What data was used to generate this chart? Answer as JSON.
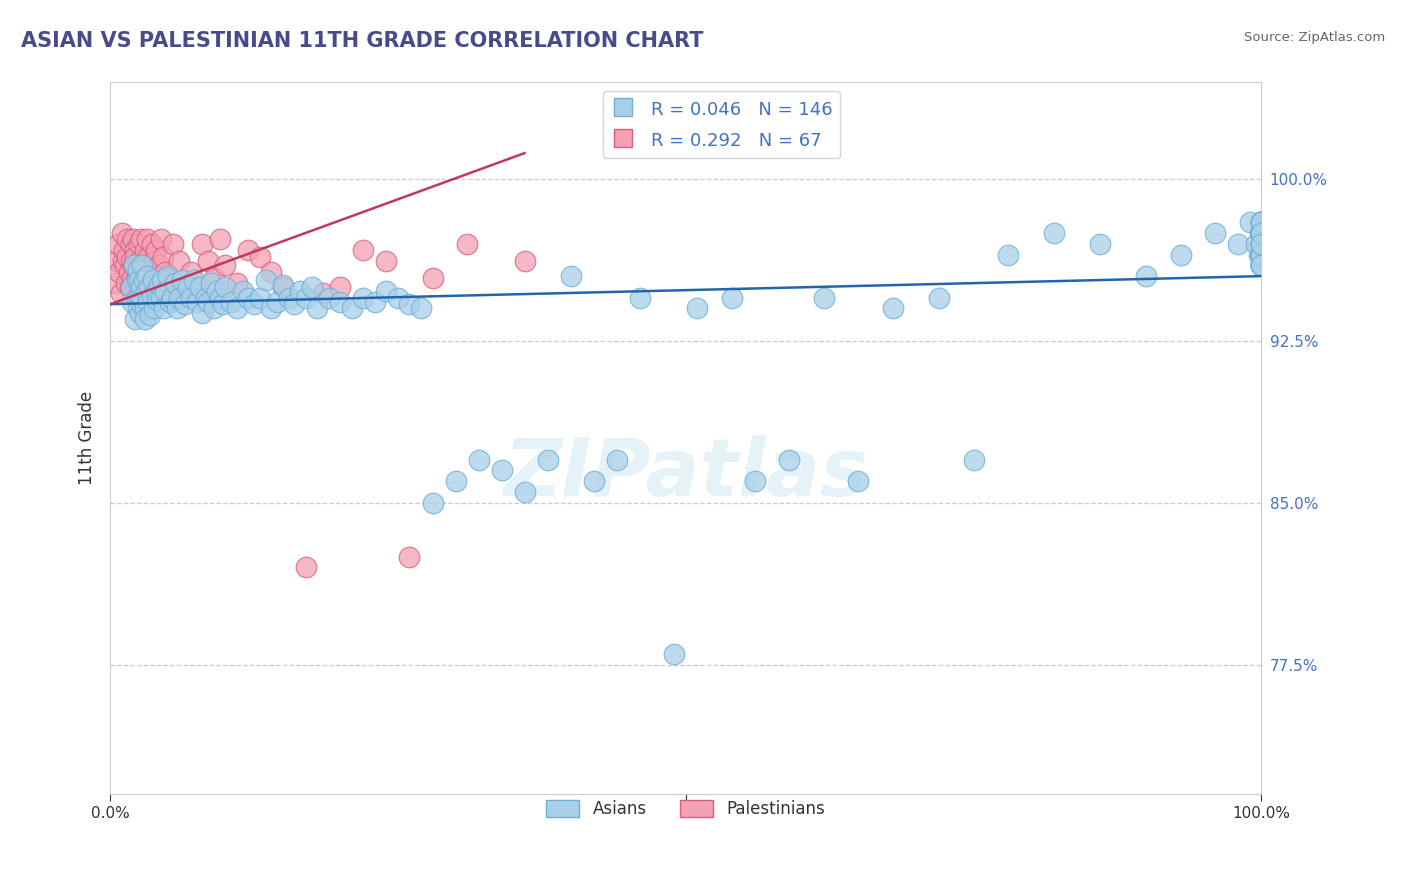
{
  "title": "ASIAN VS PALESTINIAN 11TH GRADE CORRELATION CHART",
  "source_text": "Source: ZipAtlas.com",
  "ylabel": "11th Grade",
  "ytick_labels": [
    "77.5%",
    "85.0%",
    "92.5%",
    "100.0%"
  ],
  "ytick_values": [
    0.775,
    0.85,
    0.925,
    1.0
  ],
  "xmin": 0.0,
  "xmax": 1.0,
  "ymin": 0.715,
  "ymax": 1.045,
  "asian_fill_color": "#a8d0e8",
  "asian_edge_color": "#6baed6",
  "asian_line_color": "#2166ac",
  "pal_fill_color": "#f4a0b5",
  "pal_edge_color": "#d6607a",
  "pal_line_color": "#c0385a",
  "asian_R": 0.046,
  "asian_N": 146,
  "pal_R": 0.292,
  "pal_N": 67,
  "legend_asian_label": "Asians",
  "legend_pal_label": "Palestinians",
  "watermark": "ZIPatlas",
  "grid_color": "#cccccc",
  "bg_color": "#ffffff",
  "title_color": "#4a4a8a",
  "source_color": "#666666",
  "tick_color_y": "#4472c4",
  "tick_color_x": "#333333",
  "asian_trend": [
    0.0,
    1.0,
    0.942,
    0.955
  ],
  "pal_trend": [
    0.0,
    0.36,
    0.942,
    1.012
  ],
  "asian_pts_x": [
    0.018,
    0.019,
    0.021,
    0.022,
    0.023,
    0.023,
    0.024,
    0.024,
    0.025,
    0.025,
    0.026,
    0.027,
    0.027,
    0.028,
    0.028,
    0.029,
    0.03,
    0.03,
    0.031,
    0.032,
    0.033,
    0.034,
    0.035,
    0.036,
    0.037,
    0.038,
    0.04,
    0.041,
    0.042,
    0.044,
    0.045,
    0.047,
    0.048,
    0.05,
    0.052,
    0.054,
    0.056,
    0.058,
    0.06,
    0.062,
    0.065,
    0.068,
    0.07,
    0.073,
    0.075,
    0.078,
    0.08,
    0.083,
    0.085,
    0.088,
    0.09,
    0.093,
    0.095,
    0.098,
    0.1,
    0.105,
    0.11,
    0.115,
    0.12,
    0.125,
    0.13,
    0.135,
    0.14,
    0.145,
    0.15,
    0.155,
    0.16,
    0.165,
    0.17,
    0.175,
    0.18,
    0.19,
    0.2,
    0.21,
    0.22,
    0.23,
    0.24,
    0.25,
    0.26,
    0.27,
    0.28,
    0.3,
    0.32,
    0.34,
    0.36,
    0.38,
    0.4,
    0.42,
    0.44,
    0.46,
    0.49,
    0.51,
    0.54,
    0.56,
    0.59,
    0.62,
    0.65,
    0.68,
    0.72,
    0.75,
    0.78,
    0.82,
    0.86,
    0.9,
    0.93,
    0.96,
    0.98,
    0.99,
    0.995,
    0.998,
    0.999,
    1.0,
    1.0,
    1.0,
    1.0,
    1.0,
    1.0,
    1.0,
    1.0,
    1.0,
    1.0,
    1.0,
    1.0,
    1.0,
    1.0,
    1.0,
    1.0,
    1.0,
    1.0,
    1.0,
    1.0,
    1.0,
    1.0,
    1.0,
    1.0,
    1.0,
    1.0,
    1.0,
    1.0,
    1.0,
    1.0,
    1.0
  ],
  "asian_pts_y": [
    0.95,
    0.943,
    0.96,
    0.935,
    0.953,
    0.945,
    0.94,
    0.958,
    0.945,
    0.953,
    0.938,
    0.942,
    0.95,
    0.96,
    0.945,
    0.953,
    0.94,
    0.935,
    0.948,
    0.955,
    0.943,
    0.95,
    0.937,
    0.946,
    0.953,
    0.94,
    0.948,
    0.944,
    0.951,
    0.945,
    0.953,
    0.94,
    0.948,
    0.955,
    0.943,
    0.945,
    0.952,
    0.94,
    0.945,
    0.953,
    0.942,
    0.95,
    0.945,
    0.953,
    0.943,
    0.95,
    0.938,
    0.945,
    0.943,
    0.952,
    0.94,
    0.948,
    0.945,
    0.942,
    0.95,
    0.943,
    0.94,
    0.948,
    0.945,
    0.942,
    0.945,
    0.953,
    0.94,
    0.943,
    0.951,
    0.945,
    0.942,
    0.948,
    0.945,
    0.95,
    0.94,
    0.945,
    0.943,
    0.94,
    0.945,
    0.943,
    0.948,
    0.945,
    0.942,
    0.94,
    0.85,
    0.86,
    0.87,
    0.865,
    0.855,
    0.87,
    0.955,
    0.86,
    0.87,
    0.945,
    0.78,
    0.94,
    0.945,
    0.86,
    0.87,
    0.945,
    0.86,
    0.94,
    0.945,
    0.87,
    0.965,
    0.975,
    0.97,
    0.955,
    0.965,
    0.975,
    0.97,
    0.98,
    0.97,
    0.965,
    0.975,
    0.98,
    0.96,
    0.965,
    0.975,
    0.98,
    0.965,
    0.975,
    0.98,
    0.96,
    0.965,
    0.97,
    0.975,
    0.98,
    0.965,
    0.96,
    0.975,
    0.97,
    0.96,
    0.965,
    0.975,
    0.98,
    0.965,
    0.97,
    0.96,
    0.975,
    0.98,
    0.97,
    0.965,
    0.96,
    0.975,
    0.97
  ],
  "pal_pts_x": [
    0.005,
    0.006,
    0.007,
    0.008,
    0.009,
    0.01,
    0.011,
    0.012,
    0.013,
    0.014,
    0.015,
    0.015,
    0.016,
    0.017,
    0.018,
    0.018,
    0.019,
    0.02,
    0.02,
    0.021,
    0.022,
    0.022,
    0.023,
    0.024,
    0.025,
    0.025,
    0.026,
    0.027,
    0.028,
    0.029,
    0.03,
    0.031,
    0.032,
    0.033,
    0.035,
    0.036,
    0.038,
    0.04,
    0.042,
    0.044,
    0.046,
    0.048,
    0.05,
    0.055,
    0.06,
    0.065,
    0.07,
    0.075,
    0.08,
    0.085,
    0.09,
    0.095,
    0.1,
    0.11,
    0.12,
    0.13,
    0.14,
    0.15,
    0.17,
    0.185,
    0.2,
    0.22,
    0.24,
    0.26,
    0.28,
    0.31,
    0.36
  ],
  "pal_pts_y": [
    0.952,
    0.962,
    0.97,
    0.957,
    0.947,
    0.975,
    0.962,
    0.967,
    0.96,
    0.952,
    0.972,
    0.964,
    0.957,
    0.95,
    0.97,
    0.962,
    0.954,
    0.972,
    0.96,
    0.952,
    0.967,
    0.964,
    0.957,
    0.95,
    0.97,
    0.962,
    0.954,
    0.972,
    0.96,
    0.952,
    0.967,
    0.96,
    0.972,
    0.964,
    0.957,
    0.97,
    0.962,
    0.967,
    0.96,
    0.972,
    0.964,
    0.957,
    0.954,
    0.97,
    0.962,
    0.947,
    0.957,
    0.95,
    0.97,
    0.962,
    0.954,
    0.972,
    0.96,
    0.952,
    0.967,
    0.964,
    0.957,
    0.95,
    0.82,
    0.947,
    0.95,
    0.967,
    0.962,
    0.825,
    0.954,
    0.97,
    0.962
  ]
}
